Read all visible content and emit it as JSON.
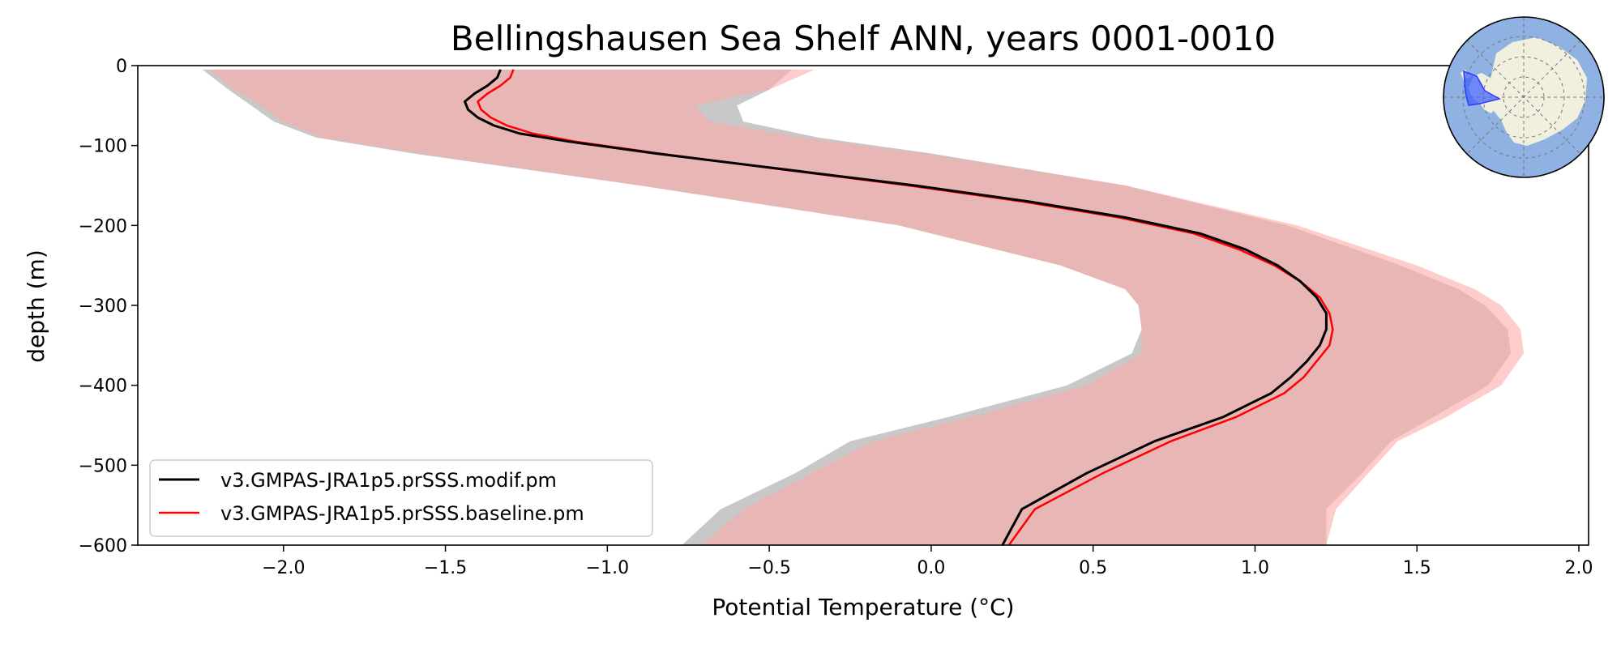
{
  "chart_data": {
    "type": "line",
    "title": "Bellingshausen Sea Shelf ANN, years 0001-0010",
    "xlabel": "Potential Temperature (°C)",
    "ylabel": "depth (m)",
    "xlim": [
      -2.45,
      2.03
    ],
    "ylim": [
      -600,
      0
    ],
    "xticks": [
      -2.0,
      -1.5,
      -1.0,
      -0.5,
      0.0,
      0.5,
      1.0,
      1.5,
      2.0
    ],
    "xtick_labels": [
      "−2.0",
      "−1.5",
      "−1.0",
      "−0.5",
      "0.0",
      "0.5",
      "1.0",
      "1.5",
      "2.0"
    ],
    "yticks": [
      0,
      -100,
      -200,
      -300,
      -400,
      -500,
      -600
    ],
    "ytick_labels": [
      "0",
      "−100",
      "−200",
      "−300",
      "−400",
      "−500",
      "−600"
    ],
    "grid": false,
    "legend_position": "lower-left",
    "series": [
      {
        "name": "v3.GMPAS-JRA1p5.prSSS.modif.pm",
        "color": "#000000",
        "depth": [
          -5,
          -15,
          -25,
          -35,
          -45,
          -55,
          -65,
          -75,
          -85,
          -95,
          -110,
          -130,
          -150,
          -170,
          -190,
          -210,
          -230,
          -250,
          -270,
          -290,
          -310,
          -330,
          -350,
          -370,
          -390,
          -410,
          -440,
          -470,
          -510,
          -555,
          -600
        ],
        "values": [
          -1.33,
          -1.34,
          -1.37,
          -1.41,
          -1.44,
          -1.43,
          -1.4,
          -1.35,
          -1.27,
          -1.12,
          -0.85,
          -0.45,
          -0.05,
          0.3,
          0.6,
          0.83,
          0.97,
          1.07,
          1.14,
          1.19,
          1.22,
          1.22,
          1.2,
          1.16,
          1.11,
          1.05,
          0.9,
          0.69,
          0.48,
          0.28,
          0.22
        ]
      },
      {
        "name": "v3.GMPAS-JRA1p5.prSSS.baseline.pm",
        "color": "#ff0000",
        "depth": [
          -5,
          -15,
          -25,
          -35,
          -45,
          -55,
          -65,
          -75,
          -85,
          -95,
          -110,
          -130,
          -150,
          -170,
          -190,
          -210,
          -230,
          -250,
          -270,
          -290,
          -310,
          -330,
          -350,
          -370,
          -390,
          -410,
          -440,
          -470,
          -510,
          -555,
          -600
        ],
        "values": [
          -1.29,
          -1.3,
          -1.33,
          -1.37,
          -1.4,
          -1.39,
          -1.36,
          -1.31,
          -1.23,
          -1.1,
          -0.84,
          -0.46,
          -0.07,
          0.28,
          0.58,
          0.81,
          0.95,
          1.06,
          1.14,
          1.2,
          1.23,
          1.24,
          1.23,
          1.19,
          1.15,
          1.09,
          0.94,
          0.74,
          0.53,
          0.32,
          0.24
        ]
      }
    ],
    "bands": [
      {
        "name": "modif spread",
        "color": "#c8c8c8",
        "depth": [
          -5,
          -30,
          -50,
          -70,
          -90,
          -110,
          -150,
          -200,
          -250,
          -280,
          -300,
          -330,
          -360,
          -400,
          -440,
          -470,
          -510,
          -555,
          -600
        ],
        "lower": [
          -2.25,
          -2.17,
          -2.1,
          -2.03,
          -1.9,
          -1.6,
          -0.9,
          -0.1,
          0.4,
          0.6,
          0.64,
          0.65,
          0.62,
          0.42,
          0.05,
          -0.25,
          -0.42,
          -0.65,
          -0.77
        ],
        "upper": [
          -0.43,
          -0.5,
          -0.6,
          -0.58,
          -0.35,
          0.0,
          0.6,
          1.1,
          1.45,
          1.63,
          1.71,
          1.78,
          1.79,
          1.72,
          1.55,
          1.42,
          1.33,
          1.22,
          1.22
        ]
      },
      {
        "name": "baseline spread",
        "color": "#ffaaaa",
        "depth": [
          -5,
          -30,
          -50,
          -70,
          -90,
          -110,
          -150,
          -200,
          -250,
          -280,
          -300,
          -330,
          -360,
          -400,
          -440,
          -470,
          -510,
          -555,
          -600
        ],
        "lower": [
          -2.23,
          -2.15,
          -2.07,
          -2.0,
          -1.88,
          -1.58,
          -0.9,
          -0.1,
          0.4,
          0.6,
          0.64,
          0.65,
          0.65,
          0.48,
          0.12,
          -0.18,
          -0.37,
          -0.58,
          -0.71
        ],
        "upper": [
          -0.36,
          -0.5,
          -0.73,
          -0.68,
          -0.4,
          -0.02,
          0.6,
          1.13,
          1.5,
          1.68,
          1.76,
          1.82,
          1.83,
          1.76,
          1.59,
          1.44,
          1.35,
          1.25,
          1.22
        ]
      }
    ],
    "inset_map": {
      "description_icon": "antarctica-polar-map",
      "ocean_color": "#8fb2e2",
      "land_color": "#f1efdd",
      "region_color": "#3b5bff"
    }
  }
}
